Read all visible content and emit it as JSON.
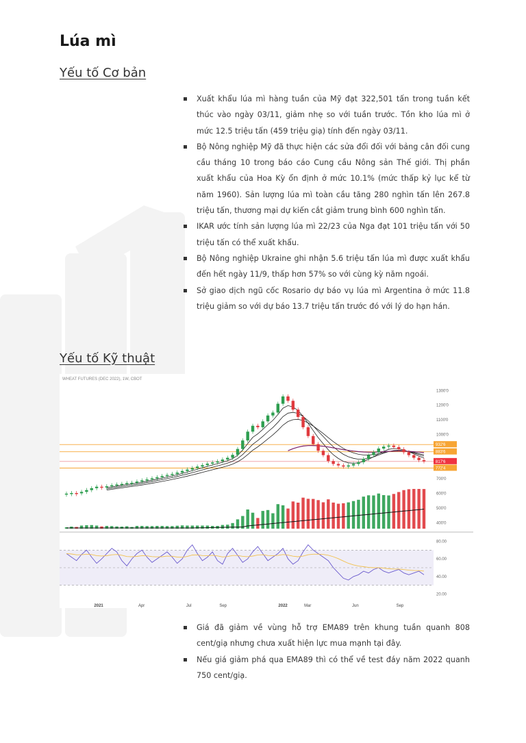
{
  "title": "Lúa mì",
  "section1": {
    "heading": "Yếu tố Cơ bản",
    "bullets": [
      "Xuất khẩu lúa mì hàng tuần của Mỹ đạt 322,501 tấn trong tuần kết thúc vào ngày 03/11, giảm nhẹ so với tuần trước. Tồn kho lúa mì ở mức 12.5 triệu tấn (459 triệu giạ) tính đến ngày 03/11.",
      "Bộ Nông nghiệp Mỹ đã thực hiện các sửa đổi đối với bảng cân đối cung cầu tháng 10 trong báo cáo Cung cầu Nông sản Thế giới. Thị phần xuất khẩu của Hoa Kỳ ổn định ở mức 10.1% (mức thấp kỷ lục kể từ năm 1960). Sản lượng lúa mì toàn cầu tăng 280 nghìn tấn lên 267.8 triệu tấn, thương mại dự kiến cắt giảm trung bình 600 nghìn tấn.",
      "IKAR ước tính sản lượng lúa mì 22/23 của Nga đạt 101 triệu tấn với 50 triệu tấn có thể xuất khẩu.",
      "Bộ Nông nghiệp Ukraine ghi nhận 5.6 triệu tấn lúa mì được xuất khẩu đến hết ngày 11/9, thấp hơn 57% so với cùng kỳ năm ngoái.",
      "Sở giao dịch ngũ cốc Rosario dự báo vụ lúa mì Argentina ở mức 11.8 triệu giảm so với dự báo 13.7 triệu tấn trước đó với lý do hạn hán."
    ]
  },
  "section2": {
    "heading": "Yếu tố Kỹ thuật",
    "bullets": [
      "Giá đã giảm về vùng hỗ trợ EMA89 trên khung tuần quanh 808 cent/giạ nhưng chưa xuất hiện lực mua mạnh tại đây.",
      "Nếu giá giảm phá qua EMA89 thì có thể về test đáy năm 2022 quanh 750 cent/giạ."
    ]
  },
  "chart_data": {
    "type": "line",
    "title": "WHEAT FUTURES (DEC 2022), 1W, CBOT",
    "price_axis": {
      "ticks": [
        "1300'0",
        "1200'0",
        "1100'0",
        "1000'0",
        "700'0",
        "600'0",
        "500'0",
        "400'0"
      ],
      "ylim": [
        350,
        1320
      ]
    },
    "price_labels": [
      {
        "value": 932,
        "text": "932'6",
        "color": "#f7a534"
      },
      {
        "value": 883,
        "text": "883'6",
        "color": "#f7a534"
      },
      {
        "value": 817,
        "text": "817'6",
        "color": "#ef3340"
      },
      {
        "value": 772,
        "text": "772'4",
        "color": "#f7a534"
      }
    ],
    "horizontal_levels": [
      932,
      883,
      817,
      772
    ],
    "time_axis": [
      "2021",
      "Apr",
      "Jul",
      "Sep",
      "2022",
      "Mar",
      "Jun",
      "Sep"
    ],
    "rsi_axis": {
      "ticks": [
        "80.00",
        "60.00",
        "40.00",
        "20.00"
      ],
      "ylim": [
        15,
        85
      ],
      "band": [
        30,
        70
      ]
    },
    "price_series": [
      598,
      602,
      600,
      610,
      622,
      635,
      645,
      640,
      648,
      655,
      660,
      664,
      670,
      672,
      680,
      688,
      695,
      702,
      710,
      718,
      725,
      732,
      741,
      752,
      762,
      772,
      782,
      792,
      802,
      810,
      818,
      830,
      842,
      862,
      902,
      960,
      1020,
      1060,
      1050,
      1090,
      1130,
      1150,
      1210,
      1260,
      1230,
      1170,
      1120,
      1050,
      990,
      935,
      890,
      860,
      820,
      800,
      790,
      782,
      790,
      800,
      812,
      835,
      860,
      880,
      905,
      918,
      925,
      915,
      900,
      880,
      860,
      842,
      826,
      818
    ],
    "rsi_series": [
      66,
      62,
      58,
      65,
      70,
      62,
      55,
      60,
      66,
      72,
      68,
      58,
      52,
      60,
      66,
      70,
      62,
      56,
      60,
      64,
      68,
      62,
      55,
      60,
      70,
      76,
      66,
      58,
      62,
      68,
      58,
      54,
      66,
      72,
      64,
      56,
      60,
      68,
      74,
      66,
      58,
      62,
      66,
      72,
      60,
      54,
      58,
      68,
      76,
      70,
      66,
      62,
      58,
      50,
      44,
      38,
      36,
      40,
      42,
      46,
      44,
      48,
      50,
      46,
      44,
      46,
      48,
      44,
      42,
      44,
      46,
      42
    ]
  }
}
